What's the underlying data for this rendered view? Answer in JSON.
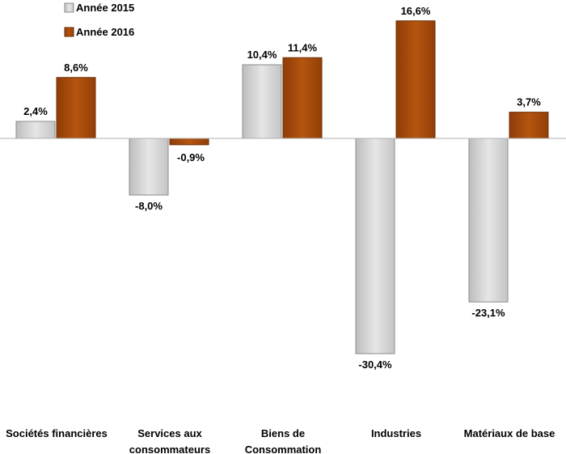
{
  "chart_data": {
    "type": "bar",
    "categories": [
      [
        "Sociétés financières"
      ],
      [
        "Services aux",
        "consommateurs"
      ],
      [
        "Biens de",
        "Consommation"
      ],
      [
        "Industries"
      ],
      [
        "Matériaux de base"
      ]
    ],
    "series": [
      {
        "name": "Année 2015",
        "values": [
          2.4,
          -8.0,
          10.4,
          -30.4,
          -23.1
        ],
        "labels": [
          "2,4%",
          "-8,0%",
          "10,4%",
          "-30,4%",
          "-23,1%"
        ],
        "color": "#d4d4d4",
        "border": "#8c8c8c"
      },
      {
        "name": "Année 2016",
        "values": [
          8.6,
          -0.9,
          11.4,
          16.6,
          3.7
        ],
        "labels": [
          "8,6%",
          "-0,9%",
          "11,4%",
          "16,6%",
          "3,7%"
        ],
        "color": "#a34a0c",
        "border": "#6e2f05"
      }
    ],
    "ylim": [
      -31,
      17.5
    ],
    "legend_position": "top-left",
    "grid": false
  }
}
